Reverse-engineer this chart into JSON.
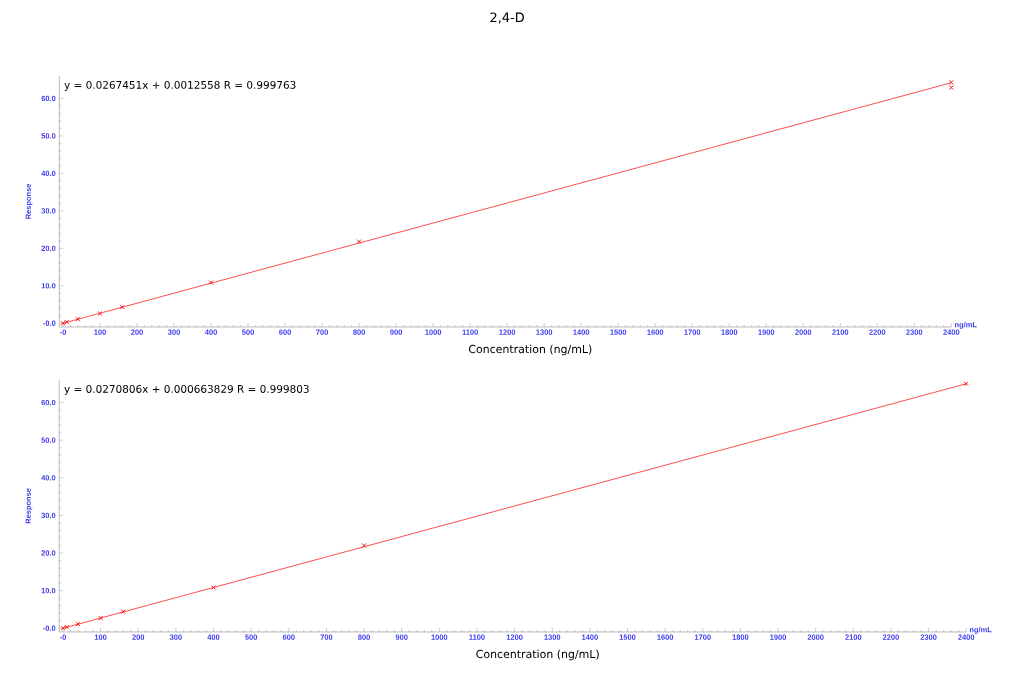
{
  "chart_data": [
    {
      "type": "scatter",
      "title": "2,4-D",
      "xlabel": "Concentration (ng/mL)",
      "ylabel": "Response",
      "annotations": [
        "y = 0.0267451x + 0.0012558   R = 0.999763",
        "ng/mL"
      ],
      "xlim": [
        -10,
        2400
      ],
      "ylim": [
        -1,
        66
      ],
      "xticks": [
        {
          "value": 0,
          "label": "-0"
        },
        100,
        200,
        300,
        400,
        500,
        600,
        700,
        800,
        900,
        1000,
        1100,
        1200,
        1300,
        1400,
        1500,
        1600,
        1700,
        1800,
        1900,
        2000,
        2100,
        2200,
        2300,
        2400
      ],
      "yticks": [
        {
          "value": 0,
          "label": "-0.0"
        },
        {
          "value": 10,
          "label": "10.0"
        },
        {
          "value": 20,
          "label": "20.0"
        },
        {
          "value": 30,
          "label": "30.0"
        },
        {
          "value": 40,
          "label": "40.0"
        },
        {
          "value": 50,
          "label": "50.0"
        },
        {
          "value": 60,
          "label": "60.0"
        }
      ],
      "grid": false,
      "series": [
        {
          "marker": "cross",
          "color": "#ff0000",
          "x": [
            0,
            10,
            40,
            100,
            160,
            400,
            800,
            2400,
            2400
          ],
          "values": [
            0.0,
            0.3,
            1.1,
            2.6,
            4.3,
            10.9,
            21.8,
            64.3,
            62.9
          ]
        },
        {
          "type": "line",
          "color": "#ff0000",
          "line_style": "solid",
          "x": [
            0,
            2400
          ],
          "values": [
            0.0,
            64.2
          ]
        }
      ]
    },
    {
      "type": "scatter",
      "xlabel": "Concentration (ng/mL)",
      "ylabel": "Response",
      "annotations": [
        "y = 0.0270806x + 0.000663829   R = 0.999803",
        "ng/mL"
      ],
      "xlim": [
        -10,
        2400
      ],
      "ylim": [
        -1,
        66
      ],
      "xticks": [
        {
          "value": 0,
          "label": "-0"
        },
        100,
        200,
        300,
        400,
        500,
        600,
        700,
        800,
        900,
        1000,
        1100,
        1200,
        1300,
        1400,
        1500,
        1600,
        1700,
        1800,
        1900,
        2000,
        2100,
        2200,
        2300,
        2400
      ],
      "yticks": [
        {
          "value": 0,
          "label": "-0.0"
        },
        {
          "value": 10,
          "label": "10.0"
        },
        {
          "value": 20,
          "label": "20.0"
        },
        {
          "value": 30,
          "label": "30.0"
        },
        {
          "value": 40,
          "label": "40.0"
        },
        {
          "value": 50,
          "label": "50.0"
        },
        {
          "value": 60,
          "label": "60.0"
        }
      ],
      "grid": false,
      "series": [
        {
          "marker": "cross",
          "color": "#ff0000",
          "x": [
            0,
            10,
            40,
            100,
            160,
            400,
            800,
            2400
          ],
          "values": [
            0.0,
            0.3,
            1.1,
            2.7,
            4.4,
            10.8,
            22.0,
            65.0
          ]
        },
        {
          "type": "line",
          "color": "#ff0000",
          "line_style": "solid",
          "x": [
            0,
            2400
          ],
          "values": [
            0.0,
            65.0
          ]
        }
      ]
    }
  ]
}
